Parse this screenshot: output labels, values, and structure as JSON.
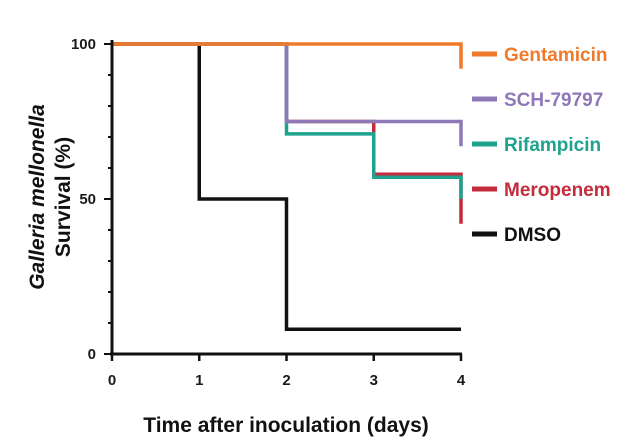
{
  "chart_data": {
    "type": "line",
    "step": true,
    "xlabel": "Time after inoculation (days)",
    "ylabel_line1": "Galleria mellonella",
    "ylabel_line2": "Survival (%)",
    "xlim": [
      0,
      4
    ],
    "ylim": [
      0,
      100
    ],
    "xticks": [
      0,
      1,
      2,
      3,
      4
    ],
    "xtick_labels": [
      "0",
      "1",
      "2",
      "3",
      "4"
    ],
    "yticks": [
      0,
      50,
      100
    ],
    "ytick_labels": [
      "0",
      "50",
      "100"
    ],
    "grid": false,
    "legend_position": "right",
    "series": [
      {
        "name": "Gentamicin",
        "color": "#F07A2B",
        "x": [
          0,
          4
        ],
        "y": [
          100,
          100
        ],
        "censor_drop": 92
      },
      {
        "name": "SCH-79797",
        "color": "#8E78B8",
        "x": [
          0,
          2,
          4
        ],
        "y": [
          100,
          75,
          75
        ],
        "censor_drop": 67
      },
      {
        "name": "Rifampicin",
        "color": "#1FA38F",
        "x": [
          0,
          2,
          3,
          4
        ],
        "y": [
          100,
          71,
          57,
          57
        ],
        "censor_drop": 50
      },
      {
        "name": "Meropenem",
        "color": "#C42B3B",
        "x": [
          0,
          2,
          3,
          4
        ],
        "y": [
          100,
          75,
          58,
          58
        ],
        "censor_drop": 42
      },
      {
        "name": "DMSO",
        "color": "#111111",
        "x": [
          0,
          1,
          2,
          4
        ],
        "y": [
          100,
          50,
          8,
          8
        ],
        "censor_drop": 8
      }
    ]
  }
}
